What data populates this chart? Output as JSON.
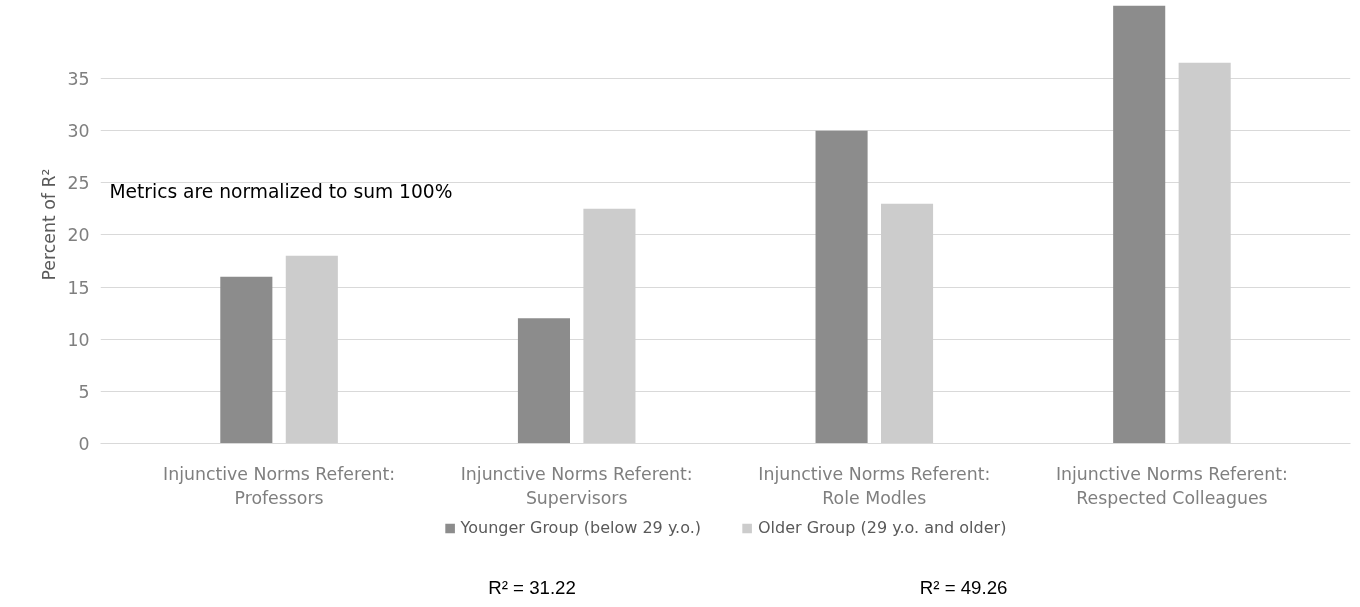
{
  "chart_data": {
    "type": "bar",
    "ylabel": "Percent of R²",
    "categories": [
      "Injunctive Norms Referent: Professors",
      "Injunctive Norms Referent: Supervisors",
      "Injunctive Norms Referent: Role Modles",
      "Injunctive Norms Referent: Respected Colleagues"
    ],
    "series": [
      {
        "name": "Younger Group (below 29 y.o.)",
        "color": "#8c8c8c",
        "values": [
          16,
          12,
          30,
          42
        ]
      },
      {
        "name": "Older Group (29 y.o. and older)",
        "color": "#cccccc",
        "values": [
          18,
          22.5,
          23,
          36.5
        ]
      }
    ],
    "ylim": [
      0,
      42
    ],
    "yticks": [
      0,
      5,
      10,
      15,
      20,
      25,
      30,
      35
    ],
    "grid": "y",
    "legend": "bottom",
    "annotations": [
      "Metrics are normalized to sum 100%",
      "R² = 31.22",
      "R² = 49.26"
    ]
  }
}
